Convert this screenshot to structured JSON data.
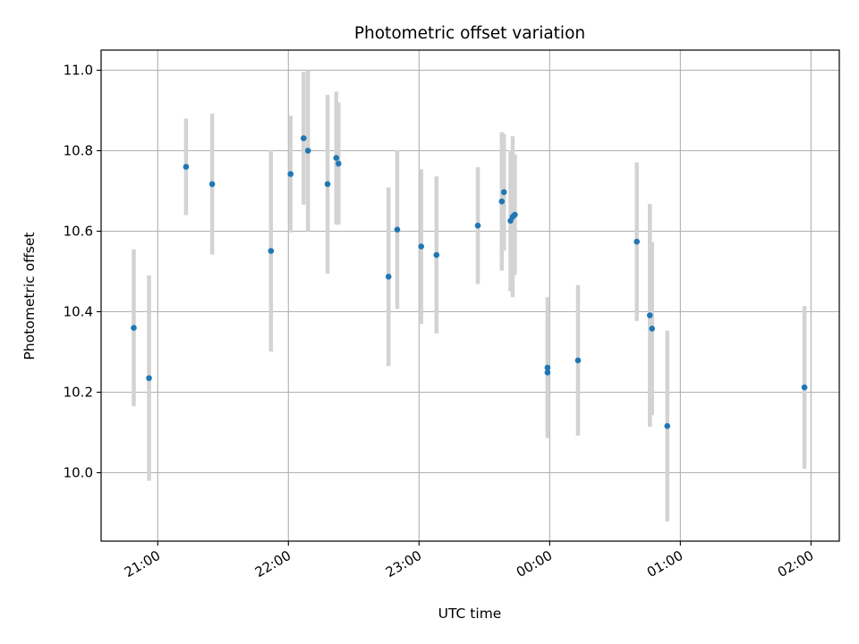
{
  "chart_data": {
    "type": "scatter",
    "title": "Photometric offset variation",
    "xlabel": "UTC time",
    "ylabel": "Photometric offset",
    "x_axis": {
      "kind": "time",
      "start": "20:34",
      "end": "02:13",
      "ticks": [
        "21:00",
        "22:00",
        "23:00",
        "00:00",
        "01:00",
        "02:00"
      ]
    },
    "y_axis": {
      "range": [
        9.83,
        11.05
      ],
      "ticks": [
        "10.0",
        "10.2",
        "10.4",
        "10.6",
        "10.8",
        "11.0"
      ]
    },
    "grid": true,
    "colors": {
      "point": "#1f77b4",
      "errorbar": "#d3d3d3",
      "grid": "#b0b0b0",
      "axes": "#000000"
    },
    "points": [
      {
        "time": "20:49",
        "y": 10.36,
        "yerr": 0.195
      },
      {
        "time": "20:56",
        "y": 10.235,
        "yerr": 0.255
      },
      {
        "time": "21:13",
        "y": 10.76,
        "yerr": 0.12
      },
      {
        "time": "21:25",
        "y": 10.717,
        "yerr": 0.175
      },
      {
        "time": "21:52",
        "y": 10.551,
        "yerr": 0.25
      },
      {
        "time": "22:01",
        "y": 10.742,
        "yerr": 0.145
      },
      {
        "time": "22:07",
        "y": 10.831,
        "yerr": 0.165
      },
      {
        "time": "22:09",
        "y": 10.8,
        "yerr": 0.2
      },
      {
        "time": "22:18",
        "y": 10.717,
        "yerr": 0.222
      },
      {
        "time": "22:22",
        "y": 10.782,
        "yerr": 0.165
      },
      {
        "time": "22:23",
        "y": 10.768,
        "yerr": 0.152
      },
      {
        "time": "22:46",
        "y": 10.487,
        "yerr": 0.222
      },
      {
        "time": "22:50",
        "y": 10.604,
        "yerr": 0.197
      },
      {
        "time": "23:01",
        "y": 10.562,
        "yerr": 0.192
      },
      {
        "time": "23:08",
        "y": 10.541,
        "yerr": 0.195
      },
      {
        "time": "23:27",
        "y": 10.614,
        "yerr": 0.145
      },
      {
        "time": "23:38",
        "y": 10.674,
        "yerr": 0.172
      },
      {
        "time": "23:39",
        "y": 10.697,
        "yerr": 0.145
      },
      {
        "time": "23:42",
        "y": 10.626,
        "yerr": 0.175
      },
      {
        "time": "23:43",
        "y": 10.636,
        "yerr": 0.2
      },
      {
        "time": "23:44",
        "y": 10.641,
        "yerr": 0.15
      },
      {
        "time": "23:59",
        "y": 10.261,
        "yerr": 0.175
      },
      {
        "time": "23:59",
        "y": 10.249,
        "yerr": 0.147
      },
      {
        "time": "00:13",
        "y": 10.279,
        "yerr": 0.187
      },
      {
        "time": "00:40",
        "y": 10.574,
        "yerr": 0.197
      },
      {
        "time": "00:46",
        "y": 10.391,
        "yerr": 0.277
      },
      {
        "time": "00:47",
        "y": 10.358,
        "yerr": 0.215
      },
      {
        "time": "00:54",
        "y": 10.116,
        "yerr": 0.237
      },
      {
        "time": "01:57",
        "y": 10.212,
        "yerr": 0.202
      }
    ]
  }
}
